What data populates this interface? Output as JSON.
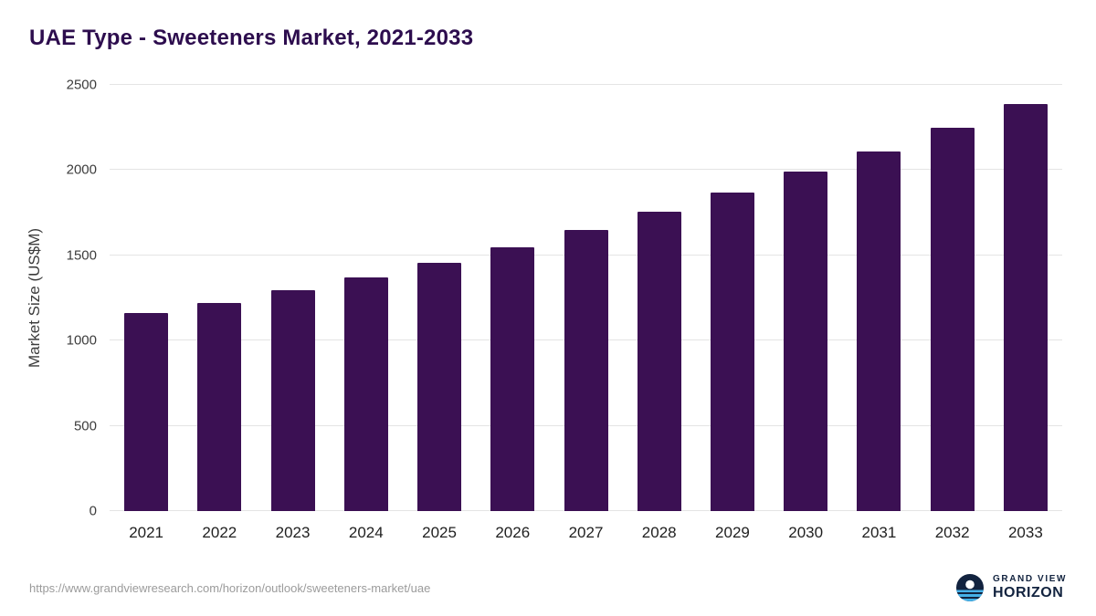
{
  "chart_data": {
    "type": "bar",
    "title": "UAE Type - Sweeteners Market, 2021-2033",
    "xlabel": "",
    "ylabel": "Market Size (US$M)",
    "categories": [
      "2021",
      "2022",
      "2023",
      "2024",
      "2025",
      "2026",
      "2027",
      "2028",
      "2029",
      "2030",
      "2031",
      "2032",
      "2033"
    ],
    "values": [
      1160,
      1220,
      1295,
      1370,
      1455,
      1545,
      1650,
      1755,
      1870,
      1990,
      2110,
      2250,
      2390
    ],
    "ylim": [
      0,
      2500
    ],
    "yticks": [
      0,
      500,
      1000,
      1500,
      2000,
      2500
    ],
    "grid": true,
    "legend": "none"
  },
  "footer": {
    "source_url": "https://www.grandviewresearch.com/horizon/outlook/sweeteners-market/uae",
    "brand_line1": "GRAND VIEW",
    "brand_line2": "HORIZON"
  },
  "colors": {
    "title_text": "#2d0d4e",
    "bar": "#3b1053",
    "gridline": "#e4e4e4",
    "axis_text": "#3c3c3c",
    "url_text": "#9b9b9b",
    "brand_navy": "#12233f",
    "brand_cyan": "#45b1e8"
  }
}
